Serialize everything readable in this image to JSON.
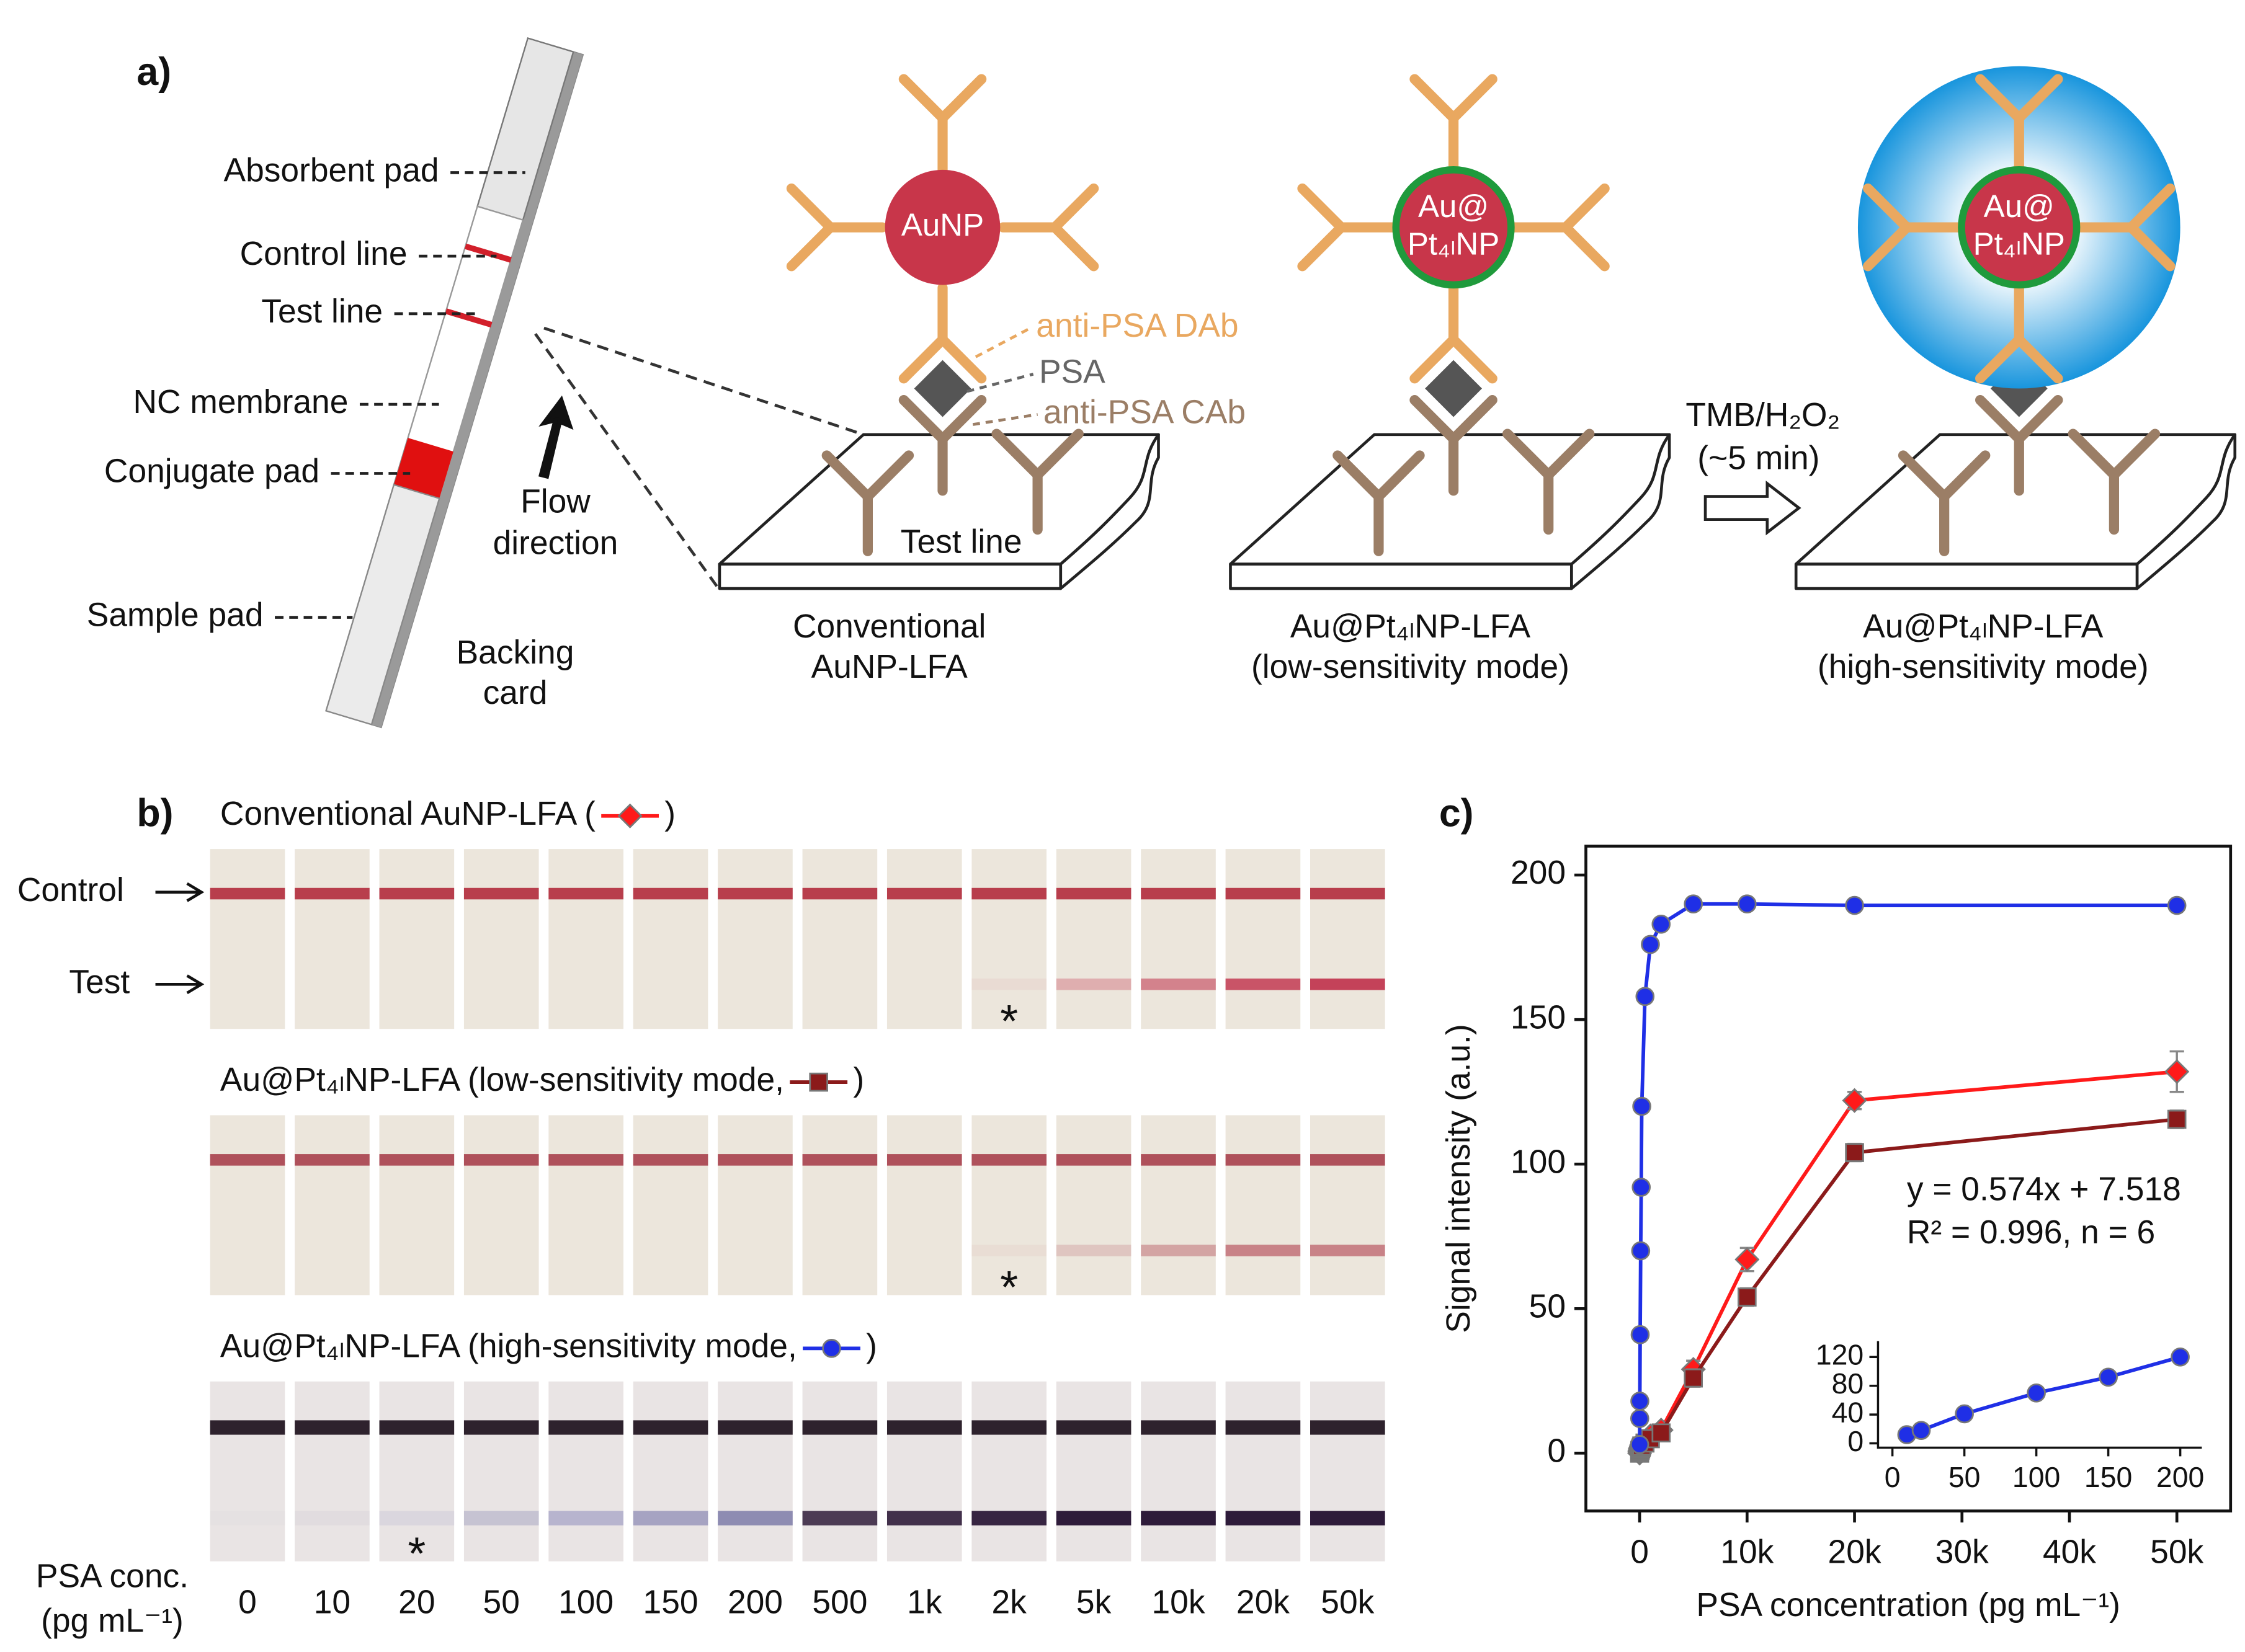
{
  "panel_a": {
    "label": "a)",
    "strip_labels": [
      "Absorbent pad",
      "Control line",
      "Test line",
      "NC membrane",
      "Conjugate pad",
      "Sample pad"
    ],
    "flow": [
      "Flow",
      "direction"
    ],
    "backing": [
      "Backing",
      "card"
    ],
    "particles": [
      [
        "AuNP"
      ],
      [
        "Au@",
        "Pt₄ₗNP"
      ],
      [
        "Au@",
        "Pt₄ₗNP"
      ]
    ],
    "annotations": [
      "anti-PSA DAb",
      "PSA",
      "anti-PSA CAb"
    ],
    "test_line": "Test line",
    "captions": [
      [
        "Conventional",
        "AuNP-LFA"
      ],
      [
        "Au@Pt₄ₗNP-LFA",
        "(low-sensitivity mode)"
      ],
      [
        "Au@Pt₄ₗNP-LFA",
        "(high-sensitivity mode)"
      ]
    ],
    "reaction": [
      "TMB/H₂O₂",
      "(~5 min)"
    ]
  },
  "panel_b": {
    "label": "b)",
    "control_label": "Control",
    "test_label": "Test",
    "rows": [
      {
        "title_open": "Conventional AuNP-LFA (",
        "title_close": ")",
        "asterisk": "*"
      },
      {
        "title_open": "Au@Pt₄ₗNP-LFA (low-sensitivity mode, ",
        "title_close": ")",
        "asterisk": "*"
      },
      {
        "title_open": "Au@Pt₄ₗNP-LFA (high-sensitivity mode, ",
        "title_close": ")",
        "asterisk": "*"
      }
    ],
    "conc_title": [
      "PSA conc.",
      "(pg mL⁻¹)"
    ],
    "concentrations": [
      "0",
      "10",
      "20",
      "50",
      "100",
      "150",
      "200",
      "500",
      "1k",
      "2k",
      "5k",
      "10k",
      "20k",
      "50k"
    ]
  },
  "chart_data": {
    "type": "line",
    "panel_label": "c)",
    "xlabel": "PSA concentration (pg mL⁻¹)",
    "ylabel": "Signal intensity (a.u.)",
    "x": [
      0,
      10,
      20,
      50,
      100,
      150,
      200,
      500,
      1000,
      2000,
      5000,
      10000,
      20000,
      50000
    ],
    "xlim": [
      -5000,
      55000
    ],
    "xticks": [
      0,
      {
        "value": 10000,
        "label": "10k"
      },
      {
        "value": 20000,
        "label": "20k"
      },
      {
        "value": 30000,
        "label": "30k"
      },
      {
        "value": 40000,
        "label": "40k"
      },
      {
        "value": 50000,
        "label": "50k"
      }
    ],
    "ylim": [
      -20,
      210
    ],
    "yticks": [
      0,
      50,
      100,
      150,
      200
    ],
    "series": [
      {
        "color": "#ff1a1a",
        "marker": "diamond",
        "values": [
          0,
          0.5,
          1,
          1.5,
          2,
          2.5,
          3,
          4,
          6,
          8,
          29,
          67,
          122,
          132
        ],
        "errors": [
          1,
          1,
          1,
          1,
          1,
          1,
          1,
          1,
          1,
          1,
          3,
          4,
          3,
          7
        ]
      },
      {
        "color": "#8b1a1a",
        "marker": "square",
        "values": [
          0,
          0.5,
          1,
          1,
          1.5,
          2,
          2.5,
          3.5,
          5,
          7,
          26,
          54,
          104,
          115.5
        ],
        "errors": [
          1,
          1,
          1,
          1,
          1,
          1,
          1,
          1,
          1,
          1,
          3,
          3,
          3,
          3
        ]
      },
      {
        "color": "#1f2fe6",
        "marker": "circle",
        "values": [
          3,
          12,
          18,
          41,
          70,
          92,
          120,
          158,
          176,
          183,
          190,
          190,
          189.5,
          189.5
        ],
        "errors": [
          1.5,
          1.5,
          1.5,
          1.5,
          1.5,
          1.5,
          1.5,
          1.5,
          1.5,
          1.5,
          1.5,
          1.5,
          1.5,
          1.5
        ]
      }
    ],
    "inset": {
      "x": [
        10,
        20,
        50,
        100,
        150,
        200
      ],
      "values": [
        12,
        18,
        41,
        70,
        92,
        120
      ],
      "color": "#1f2fe6",
      "xlim": [
        -10,
        215
      ],
      "ylim": [
        -6,
        126
      ],
      "xticks": [
        0,
        50,
        100,
        150,
        200
      ],
      "yticks": [
        0,
        40,
        80,
        120
      ],
      "annotations": [
        "y = 0.574x + 7.518",
        "R² = 0.996, n = 6"
      ]
    }
  }
}
